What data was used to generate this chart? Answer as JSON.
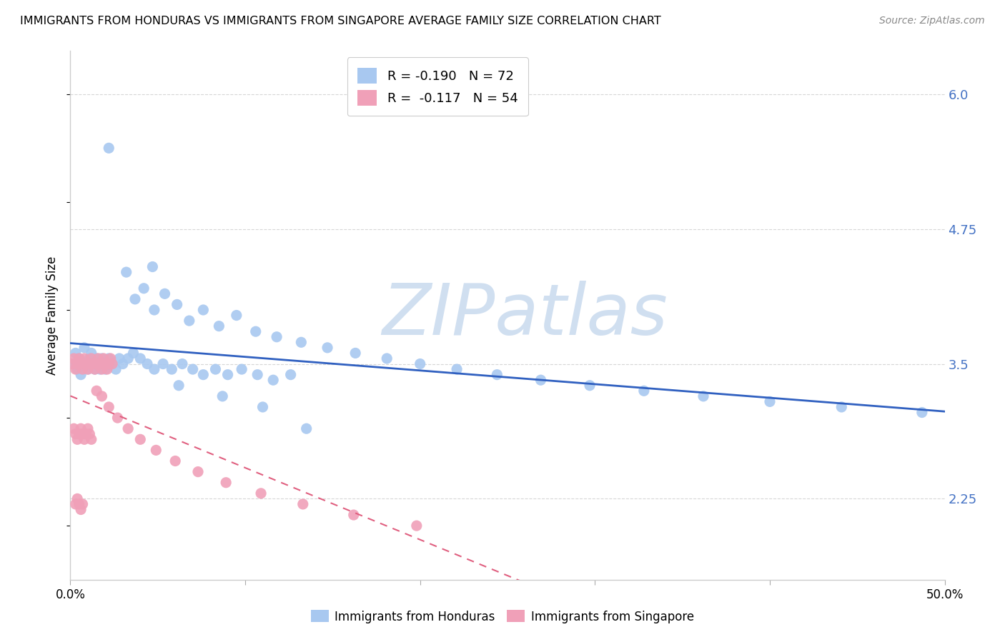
{
  "title": "IMMIGRANTS FROM HONDURAS VS IMMIGRANTS FROM SINGAPORE AVERAGE FAMILY SIZE CORRELATION CHART",
  "source": "Source: ZipAtlas.com",
  "ylabel": "Average Family Size",
  "xmin": 0.0,
  "xmax": 0.5,
  "ymin": 1.5,
  "ymax": 6.4,
  "yticks": [
    2.25,
    3.5,
    4.75,
    6.0
  ],
  "xticks": [
    0.0,
    0.1,
    0.2,
    0.3,
    0.4,
    0.5
  ],
  "xtick_labels": [
    "0.0%",
    "",
    "",
    "",
    "",
    "50.0%"
  ],
  "legend_labels": [
    "Immigrants from Honduras",
    "Immigrants from Singapore"
  ],
  "legend_R": [
    "-0.190",
    "-0.117"
  ],
  "legend_N": [
    "72",
    "54"
  ],
  "blue_color": "#a8c8f0",
  "pink_color": "#f0a0b8",
  "blue_line_color": "#3060c0",
  "pink_line_color": "#e06080",
  "watermark": "ZIPatlas",
  "watermark_color": "#d0dff0",
  "blue_R_color": "#4472c4",
  "blue_N_color": "#4472c4",
  "blue_x": [
    0.002,
    0.003,
    0.004,
    0.005,
    0.006,
    0.007,
    0.008,
    0.009,
    0.01,
    0.011,
    0.012,
    0.013,
    0.014,
    0.015,
    0.016,
    0.017,
    0.018,
    0.019,
    0.02,
    0.022,
    0.024,
    0.026,
    0.028,
    0.03,
    0.033,
    0.036,
    0.04,
    0.044,
    0.048,
    0.053,
    0.058,
    0.064,
    0.07,
    0.076,
    0.083,
    0.09,
    0.098,
    0.107,
    0.116,
    0.126,
    0.037,
    0.042,
    0.048,
    0.054,
    0.061,
    0.068,
    0.076,
    0.085,
    0.095,
    0.106,
    0.118,
    0.132,
    0.147,
    0.163,
    0.181,
    0.2,
    0.221,
    0.244,
    0.269,
    0.297,
    0.328,
    0.362,
    0.4,
    0.441,
    0.487,
    0.022,
    0.032,
    0.047,
    0.062,
    0.087,
    0.11,
    0.135
  ],
  "blue_y": [
    3.5,
    3.6,
    3.45,
    3.55,
    3.4,
    3.5,
    3.65,
    3.5,
    3.45,
    3.55,
    3.6,
    3.5,
    3.45,
    3.55,
    3.5,
    3.45,
    3.55,
    3.5,
    3.45,
    3.55,
    3.5,
    3.45,
    3.55,
    3.5,
    3.55,
    3.6,
    3.55,
    3.5,
    3.45,
    3.5,
    3.45,
    3.5,
    3.45,
    3.4,
    3.45,
    3.4,
    3.45,
    3.4,
    3.35,
    3.4,
    4.1,
    4.2,
    4.0,
    4.15,
    4.05,
    3.9,
    4.0,
    3.85,
    3.95,
    3.8,
    3.75,
    3.7,
    3.65,
    3.6,
    3.55,
    3.5,
    3.45,
    3.4,
    3.35,
    3.3,
    3.25,
    3.2,
    3.15,
    3.1,
    3.05,
    5.5,
    4.35,
    4.4,
    3.3,
    3.2,
    3.1,
    2.9
  ],
  "pink_x": [
    0.001,
    0.002,
    0.003,
    0.004,
    0.005,
    0.006,
    0.007,
    0.008,
    0.009,
    0.01,
    0.011,
    0.012,
    0.013,
    0.014,
    0.015,
    0.016,
    0.017,
    0.018,
    0.019,
    0.02,
    0.021,
    0.022,
    0.023,
    0.024,
    0.002,
    0.003,
    0.004,
    0.005,
    0.006,
    0.007,
    0.008,
    0.009,
    0.01,
    0.011,
    0.012,
    0.003,
    0.004,
    0.005,
    0.006,
    0.007,
    0.015,
    0.018,
    0.022,
    0.027,
    0.033,
    0.04,
    0.049,
    0.06,
    0.073,
    0.089,
    0.109,
    0.133,
    0.162,
    0.198
  ],
  "pink_y": [
    3.5,
    3.55,
    3.45,
    3.5,
    3.55,
    3.5,
    3.45,
    3.55,
    3.5,
    3.45,
    3.5,
    3.55,
    3.5,
    3.45,
    3.5,
    3.55,
    3.5,
    3.45,
    3.55,
    3.5,
    3.45,
    3.5,
    3.55,
    3.5,
    2.9,
    2.85,
    2.8,
    2.85,
    2.9,
    2.85,
    2.8,
    2.85,
    2.9,
    2.85,
    2.8,
    2.2,
    2.25,
    2.2,
    2.15,
    2.2,
    3.25,
    3.2,
    3.1,
    3.0,
    2.9,
    2.8,
    2.7,
    2.6,
    2.5,
    2.4,
    2.3,
    2.2,
    2.1,
    2.0
  ]
}
